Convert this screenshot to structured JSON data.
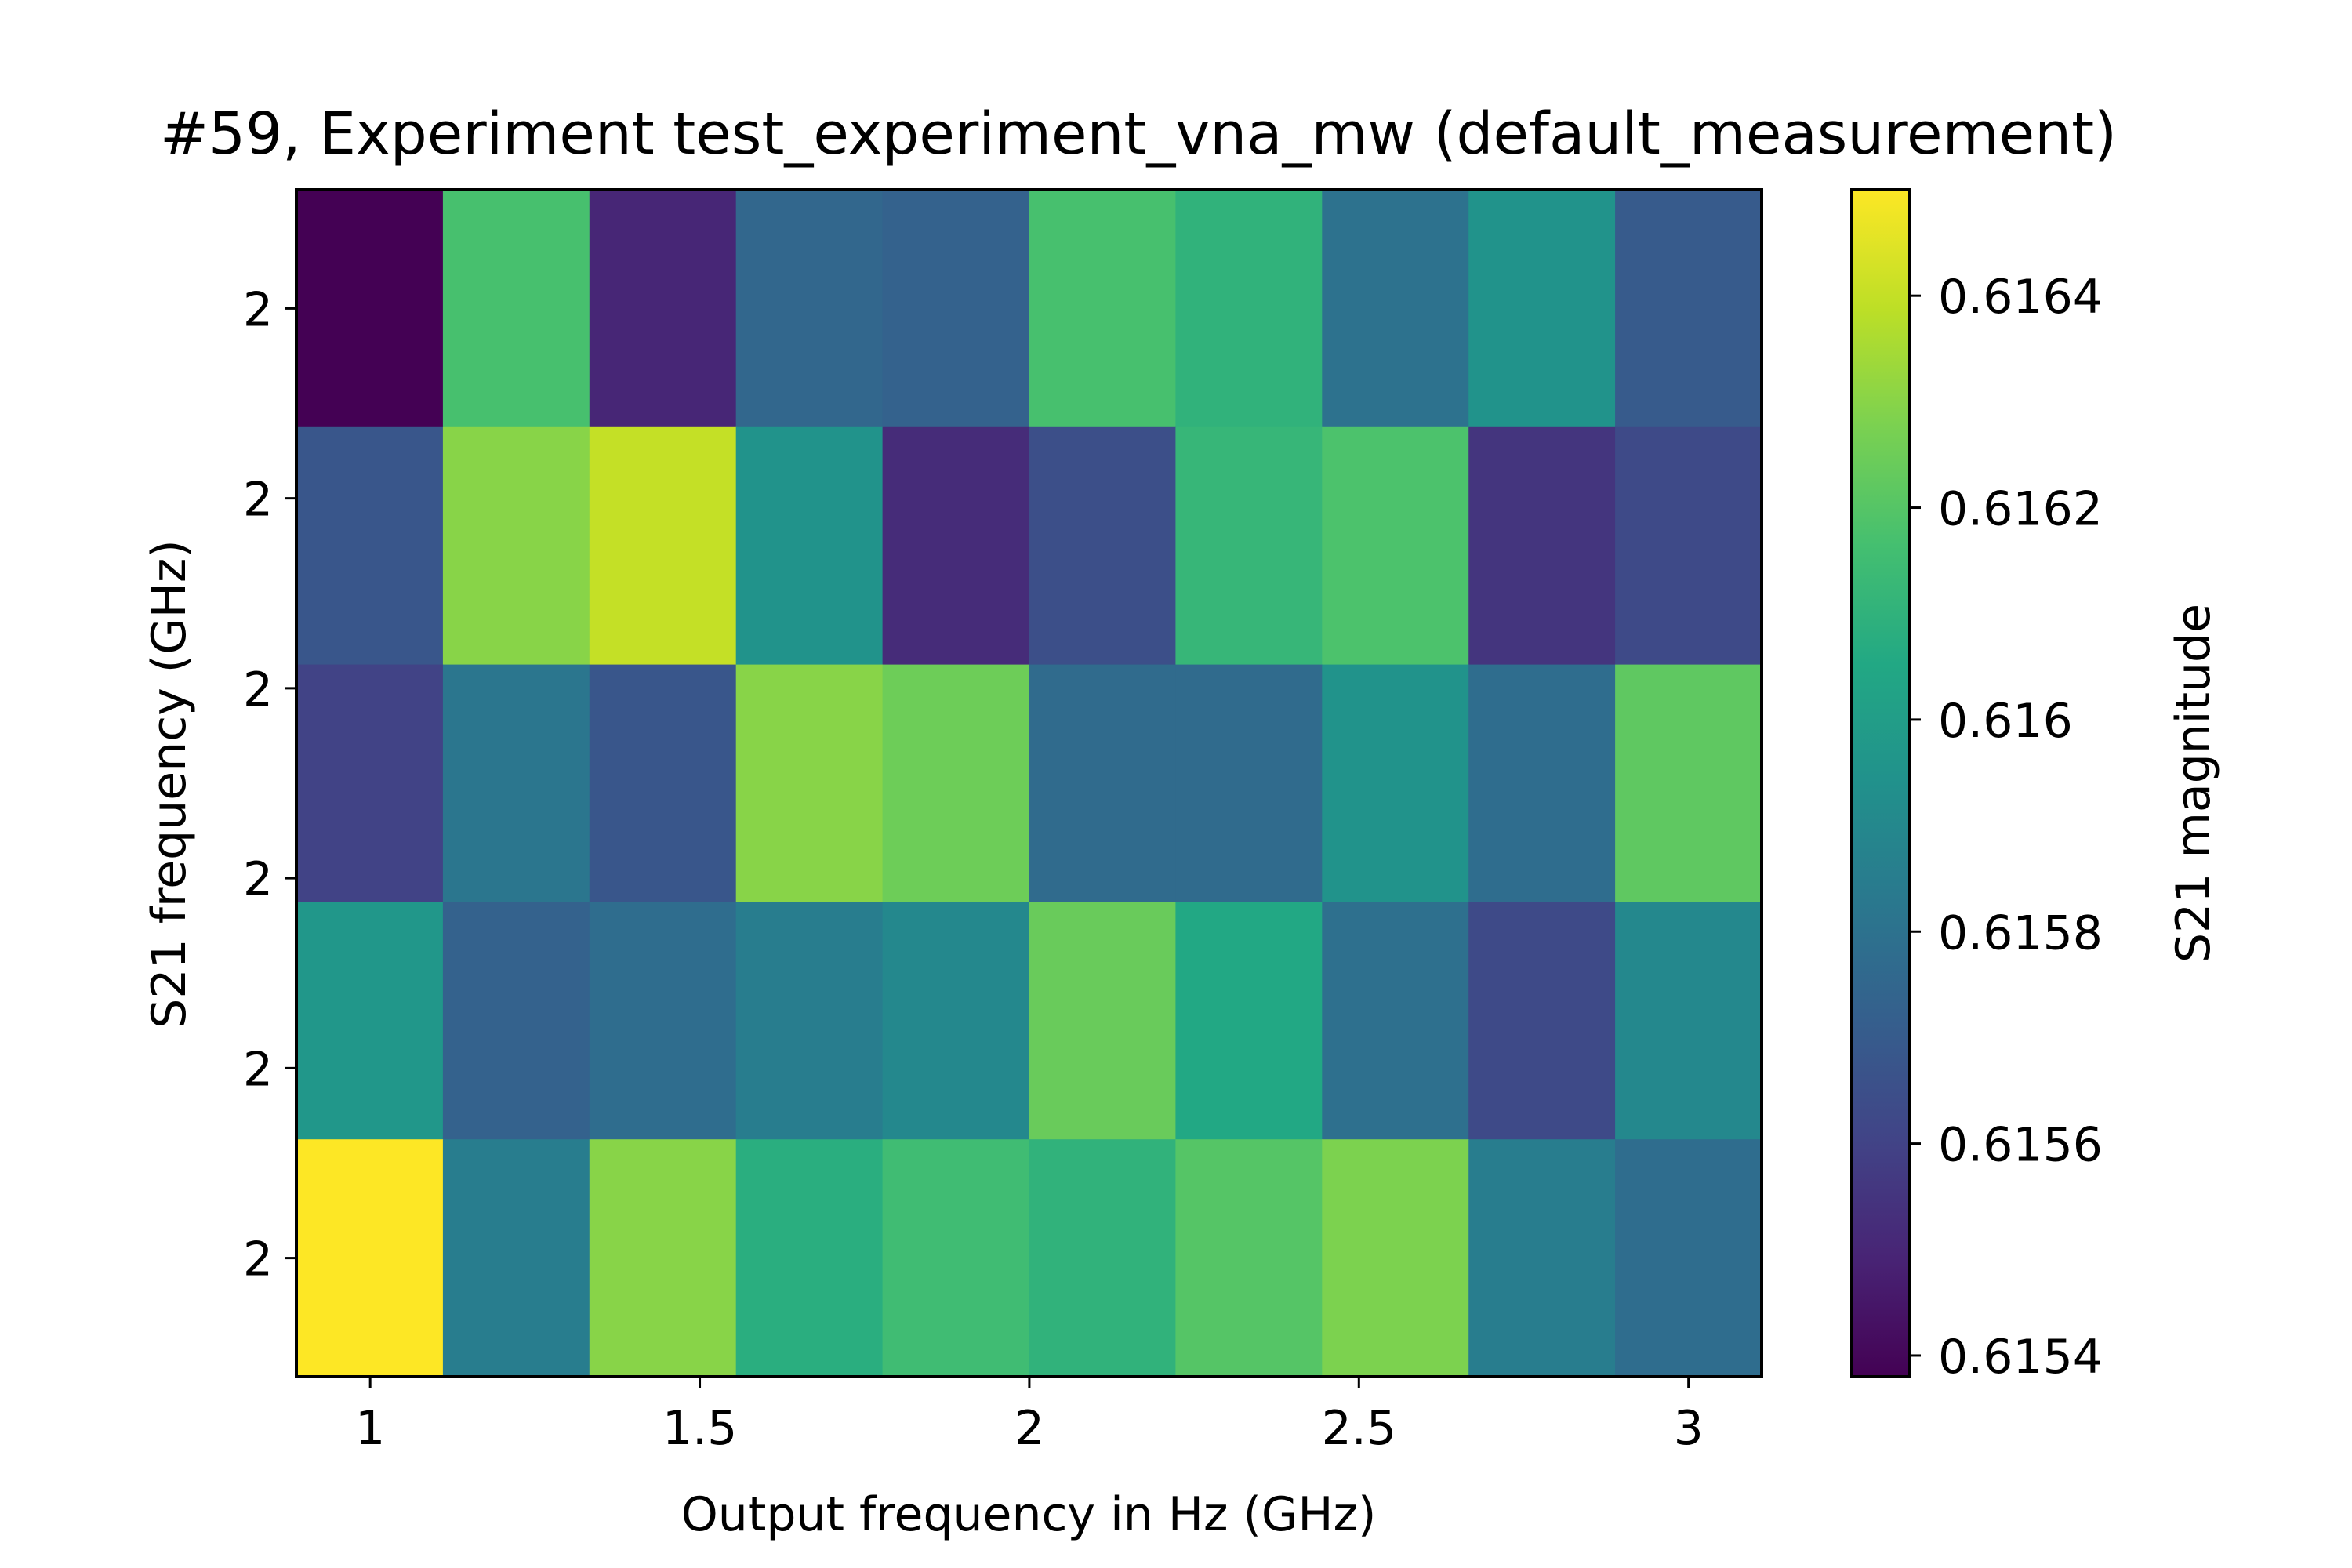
{
  "chart_data": {
    "type": "heatmap",
    "title": "#59, Experiment test_experiment_vna_mw (default_measurement)",
    "xlabel": "Output frequency in Hz (GHz)",
    "ylabel": "S21 frequency (GHz)",
    "colorbar_label": "S21 magnitude",
    "colormap": "viridis",
    "xlim": [
      0.888,
      3.111
    ],
    "x_ticks": [
      1,
      1.5,
      2,
      2.5,
      3
    ],
    "x_tick_labels": [
      "1",
      "1.5",
      "2",
      "2.5",
      "3"
    ],
    "y_tick_labels": [
      "2",
      "2",
      "2",
      "2",
      "2",
      "2"
    ],
    "x_values": [
      1.0,
      1.222,
      1.444,
      1.667,
      1.889,
      2.111,
      2.333,
      2.556,
      2.778,
      3.0
    ],
    "rows": 5,
    "values_top_to_bottom": [
      [
        0.61538,
        0.61617,
        0.6155,
        0.61575,
        0.61573,
        0.61617,
        0.6161,
        0.6158,
        0.61595,
        0.6157
      ],
      [
        0.61568,
        0.6163,
        0.6164,
        0.61595,
        0.61552,
        0.61565,
        0.61612,
        0.61618,
        0.61555,
        0.61563
      ],
      [
        0.6156,
        0.61582,
        0.61568,
        0.6163,
        0.61625,
        0.61577,
        0.61577,
        0.61595,
        0.61578,
        0.61622
      ],
      [
        0.61597,
        0.61573,
        0.61578,
        0.61585,
        0.6159,
        0.61624,
        0.61605,
        0.61579,
        0.61563,
        0.6159
      ],
      [
        0.6165,
        0.61585,
        0.6163,
        0.61608,
        0.61615,
        0.6161,
        0.6162,
        0.61628,
        0.61585,
        0.61578
      ]
    ],
    "colorbar_range": [
      0.61538,
      0.6165
    ],
    "colorbar_ticks": [
      0.6154,
      0.6156,
      0.6158,
      0.616,
      0.6162,
      0.6164
    ],
    "colorbar_tick_labels": [
      "0.6154",
      "0.6156",
      "0.6158",
      "0.616",
      "0.6162",
      "0.6164"
    ],
    "grid": false
  }
}
